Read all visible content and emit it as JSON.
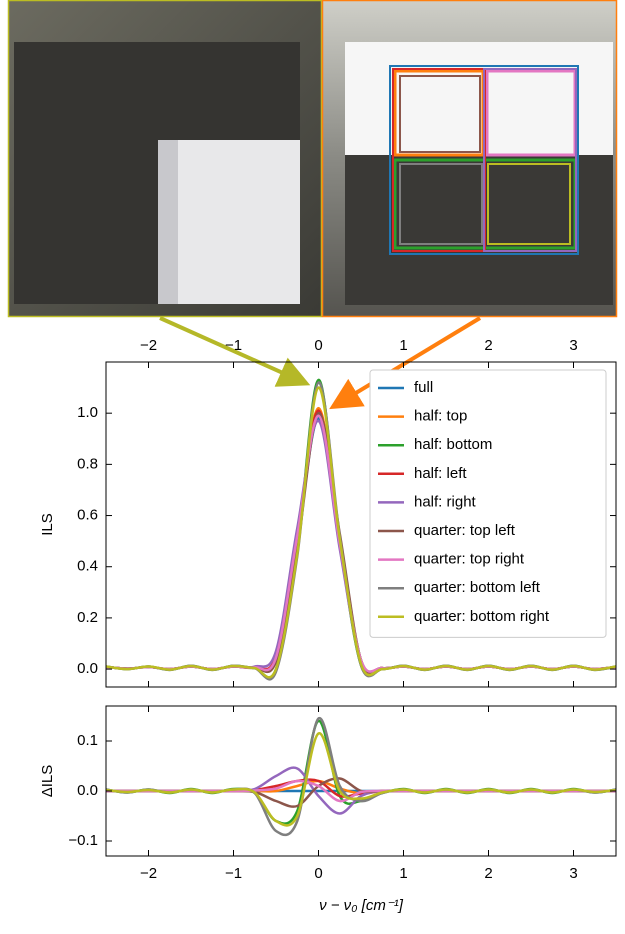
{
  "chart_data": [
    {
      "type": "line",
      "ylabel": "ILS",
      "xtick_side": "top",
      "legend": "upper right",
      "xlim": [
        -2.5,
        3.5
      ],
      "ylim": [
        -0.07,
        1.2
      ],
      "xticks": [
        {
          "value": -2,
          "label": "−2"
        },
        {
          "value": -1,
          "label": "−1"
        },
        0,
        1,
        2,
        3
      ],
      "yticks": [
        {
          "value": 0,
          "label": "0.0"
        },
        {
          "value": 0.2,
          "label": "0.2"
        },
        {
          "value": 0.4,
          "label": "0.4"
        },
        {
          "value": 0.6,
          "label": "0.6"
        },
        {
          "value": 0.8,
          "label": "0.8"
        },
        {
          "value": 1.0,
          "label": "1.0"
        }
      ],
      "x": [
        -2.5,
        -2.25,
        -2,
        -1.75,
        -1.5,
        -1.25,
        -1,
        -0.75,
        -0.5,
        -0.25,
        0,
        0.25,
        0.5,
        0.75,
        1,
        1.25,
        1.5,
        1.75,
        2,
        2.25,
        2.5,
        2.75,
        3,
        3.25,
        3.5
      ],
      "series": [
        {
          "name": "full",
          "color": "#1f77b4",
          "values": [
            0.008,
            0.002,
            0.008,
            0.0,
            0.01,
            0.0,
            0.01,
            0.006,
            0.04,
            0.5,
            0.98,
            0.51,
            0.035,
            0.004,
            0.01,
            0.0,
            0.01,
            0.0,
            0.01,
            0.0,
            0.01,
            0.0,
            0.01,
            0.0,
            0.008
          ]
        },
        {
          "name": "half: top",
          "color": "#ff7f0e",
          "values": [
            0.008,
            0.002,
            0.008,
            0.0,
            0.01,
            0.0,
            0.01,
            0.006,
            0.04,
            0.51,
            1.02,
            0.51,
            0.035,
            0.004,
            0.01,
            0.0,
            0.01,
            0.0,
            0.01,
            0.0,
            0.01,
            0.0,
            0.01,
            0.0,
            0.008
          ]
        },
        {
          "name": "half: bottom",
          "color": "#2ca02c",
          "values": [
            0.01,
            0.0,
            0.01,
            -0.003,
            0.013,
            -0.003,
            0.013,
            0.004,
            0.0,
            0.46,
            1.13,
            0.5,
            0.015,
            0.0,
            0.013,
            -0.003,
            0.013,
            -0.003,
            0.013,
            -0.003,
            0.013,
            -0.003,
            0.013,
            -0.003,
            0.01
          ]
        },
        {
          "name": "half: left",
          "color": "#d62728",
          "values": [
            0.008,
            0.002,
            0.008,
            0.0,
            0.01,
            0.0,
            0.01,
            0.008,
            0.05,
            0.52,
            1.01,
            0.5,
            0.03,
            0.004,
            0.01,
            0.0,
            0.01,
            0.0,
            0.01,
            0.0,
            0.01,
            0.0,
            0.01,
            0.0,
            0.008
          ]
        },
        {
          "name": "half: right",
          "color": "#9467bd",
          "values": [
            0.008,
            0.002,
            0.008,
            0.0,
            0.01,
            0.0,
            0.01,
            0.01,
            0.07,
            0.55,
            0.97,
            0.47,
            0.03,
            0.004,
            0.01,
            0.0,
            0.01,
            0.0,
            0.01,
            0.0,
            0.01,
            0.0,
            0.01,
            0.0,
            0.008
          ]
        },
        {
          "name": "quarter: top left",
          "color": "#8c564b",
          "values": [
            0.008,
            0.002,
            0.008,
            0.0,
            0.01,
            0.0,
            0.01,
            0.006,
            0.03,
            0.47,
            1.0,
            0.53,
            0.035,
            0.004,
            0.01,
            0.0,
            0.01,
            0.0,
            0.01,
            0.0,
            0.01,
            0.0,
            0.01,
            0.0,
            0.008
          ]
        },
        {
          "name": "quarter: top right",
          "color": "#e377c2",
          "values": [
            0.008,
            0.002,
            0.008,
            0.0,
            0.01,
            0.0,
            0.01,
            0.007,
            0.045,
            0.52,
            0.99,
            0.49,
            0.035,
            0.004,
            0.01,
            0.0,
            0.01,
            0.0,
            0.01,
            0.0,
            0.01,
            0.0,
            0.01,
            0.0,
            0.008
          ]
        },
        {
          "name": "quarter: bottom left",
          "color": "#7f7f7f",
          "values": [
            0.01,
            0.0,
            0.01,
            -0.003,
            0.013,
            -0.003,
            0.013,
            0.003,
            -0.01,
            0.44,
            1.12,
            0.52,
            0.015,
            0.0,
            0.013,
            -0.003,
            0.013,
            -0.003,
            0.013,
            -0.003,
            0.013,
            -0.003,
            0.013,
            -0.003,
            0.01
          ]
        },
        {
          "name": "quarter: bottom right",
          "color": "#bcbd22",
          "values": [
            0.01,
            0.0,
            0.01,
            -0.002,
            0.012,
            -0.002,
            0.012,
            0.004,
            0.0,
            0.45,
            1.1,
            0.51,
            0.02,
            0.0,
            0.012,
            -0.002,
            0.012,
            -0.002,
            0.012,
            -0.002,
            0.012,
            -0.002,
            0.012,
            -0.002,
            0.01
          ]
        }
      ]
    },
    {
      "type": "line",
      "ylabel": "ΔILS",
      "xlabel": "ν − ν₀ [cm⁻¹]",
      "xtick_side": "bottom",
      "xlim": [
        -2.5,
        3.5
      ],
      "ylim": [
        -0.13,
        0.17
      ],
      "xticks": [
        {
          "value": -2,
          "label": "−2"
        },
        {
          "value": -1,
          "label": "−1"
        },
        0,
        1,
        2,
        3
      ],
      "yticks": [
        {
          "value": -0.1,
          "label": "−0.1"
        },
        {
          "value": 0,
          "label": "0.0"
        },
        0.1
      ],
      "x": [
        -2.5,
        -2.25,
        -2,
        -1.75,
        -1.5,
        -1.25,
        -1,
        -0.75,
        -0.5,
        -0.25,
        0,
        0.25,
        0.5,
        0.75,
        1,
        1.25,
        1.5,
        1.75,
        2,
        2.25,
        2.5,
        2.75,
        3,
        3.25,
        3.5
      ],
      "series": [
        {
          "name": "full",
          "color": "#1f77b4",
          "values": [
            0,
            0,
            0,
            0,
            0,
            0,
            0,
            0,
            0,
            0,
            0,
            0,
            0,
            0,
            0,
            0,
            0,
            0,
            0,
            0,
            0,
            0,
            0,
            0,
            0
          ]
        },
        {
          "name": "half: top",
          "color": "#ff7f0e",
          "values": [
            0,
            0,
            0,
            0,
            0,
            0,
            0,
            0,
            0,
            0.01,
            0.02,
            0.005,
            -0.005,
            0,
            0,
            0,
            0,
            0,
            0,
            0,
            0,
            0,
            0,
            0,
            0
          ]
        },
        {
          "name": "half: bottom",
          "color": "#2ca02c",
          "values": [
            0.003,
            -0.003,
            0.003,
            -0.004,
            0.004,
            -0.004,
            0.004,
            -0.004,
            -0.06,
            -0.04,
            0.14,
            -0.01,
            -0.02,
            -0.004,
            0.004,
            -0.004,
            0.004,
            -0.004,
            0.004,
            -0.004,
            0.004,
            -0.004,
            0.004,
            -0.003,
            0.003
          ]
        },
        {
          "name": "half: left",
          "color": "#d62728",
          "values": [
            0,
            0,
            0,
            0,
            0,
            0,
            0,
            0.002,
            0.01,
            0.02,
            0.02,
            -0.01,
            -0.005,
            0,
            0,
            0,
            0,
            0,
            0,
            0,
            0,
            0,
            0,
            0,
            0
          ]
        },
        {
          "name": "half: right",
          "color": "#9467bd",
          "values": [
            0,
            0,
            0,
            0,
            0,
            0,
            0,
            0.004,
            0.03,
            0.045,
            -0.01,
            -0.045,
            -0.01,
            0,
            0,
            0,
            0,
            0,
            0,
            0,
            0,
            0,
            0,
            0,
            0
          ]
        },
        {
          "name": "quarter: top left",
          "color": "#8c564b",
          "values": [
            0,
            0,
            0,
            0,
            0,
            0,
            0,
            -0.002,
            -0.02,
            -0.03,
            0.01,
            0.025,
            0.0,
            0,
            0,
            0,
            0,
            0,
            0,
            0,
            0,
            0,
            0,
            0,
            0
          ]
        },
        {
          "name": "quarter: top right",
          "color": "#e377c2",
          "values": [
            0,
            0,
            0,
            0,
            0,
            0,
            0,
            0.001,
            0.005,
            0.02,
            0.01,
            -0.02,
            -0.002,
            0,
            0,
            0,
            0,
            0,
            0,
            0,
            0,
            0,
            0,
            0,
            0
          ]
        },
        {
          "name": "quarter: bottom left",
          "color": "#7f7f7f",
          "values": [
            0.003,
            -0.003,
            0.003,
            -0.003,
            0.003,
            -0.003,
            0.003,
            -0.004,
            -0.08,
            -0.06,
            0.145,
            0.01,
            -0.02,
            -0.004,
            0.003,
            -0.003,
            0.003,
            -0.003,
            0.003,
            -0.003,
            0.003,
            -0.003,
            0.003,
            -0.003,
            0.003
          ]
        },
        {
          "name": "quarter: bottom right",
          "color": "#bcbd22",
          "values": [
            0.002,
            -0.002,
            0.002,
            -0.003,
            0.003,
            -0.003,
            0.003,
            -0.003,
            -0.06,
            -0.05,
            0.115,
            0.0,
            -0.015,
            -0.003,
            0.003,
            -0.003,
            0.003,
            -0.003,
            0.003,
            -0.003,
            0.003,
            -0.003,
            0.003,
            -0.002,
            0.002
          ]
        }
      ]
    }
  ]
}
